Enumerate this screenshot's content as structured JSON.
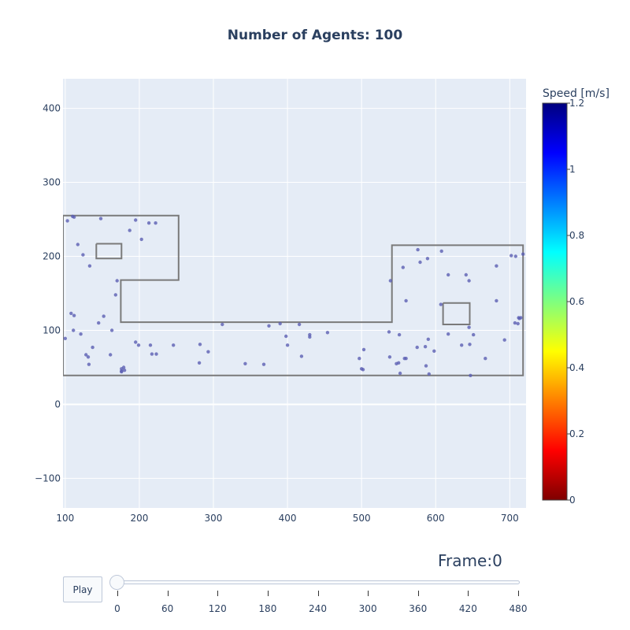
{
  "chart_data": {
    "type": "scatter",
    "title": "Number of Agents: 100",
    "xlabel": "",
    "ylabel": "",
    "xlim": [
      97,
      722
    ],
    "ylim": [
      -140,
      440
    ],
    "xticks": [
      100,
      200,
      300,
      400,
      500,
      600,
      700
    ],
    "yticks": [
      -100,
      0,
      100,
      200,
      300,
      400
    ],
    "xtick_labels": [
      "100",
      "200",
      "300",
      "400",
      "500",
      "600",
      "700"
    ],
    "ytick_labels": [
      "−100",
      "0",
      "100",
      "200",
      "300",
      "400"
    ],
    "grid": true,
    "background": "#e5ecf6",
    "marker_color": "#5b5fb3",
    "wall_color": "#7a7a7a",
    "walls": [
      [
        [
          97,
          255
        ],
        [
          253,
          255
        ],
        [
          253,
          168
        ],
        [
          175,
          168
        ],
        [
          175,
          111
        ],
        [
          541,
          111
        ],
        [
          541,
          215
        ],
        [
          718,
          215
        ],
        [
          718,
          39
        ],
        [
          97,
          39
        ],
        [
          97,
          255
        ]
      ],
      [
        [
          142,
          217
        ],
        [
          176,
          217
        ],
        [
          176,
          197
        ],
        [
          142,
          197
        ],
        [
          142,
          217
        ]
      ],
      [
        [
          610,
          137
        ],
        [
          646,
          137
        ],
        [
          646,
          108
        ],
        [
          610,
          108
        ],
        [
          610,
          137
        ]
      ]
    ],
    "colorbar": {
      "title": "Speed [m/s]",
      "min": 0,
      "max": 1.2,
      "ticks": [
        0,
        0.2,
        0.4,
        0.6,
        0.8,
        1,
        1.2
      ],
      "tick_labels": [
        "0",
        "0.2",
        "0.4",
        "0.6",
        "0.8",
        "1",
        "1.2"
      ],
      "colorscale": [
        "#7f0000",
        "#ff0000",
        "#ff7f00",
        "#ffff00",
        "#7fff7f",
        "#00ffff",
        "#007fff",
        "#0000ff",
        "#00007f"
      ]
    },
    "x": [
      103,
      112,
      110,
      117,
      148,
      187,
      195,
      203,
      213,
      222,
      124,
      133,
      170,
      168,
      145,
      112,
      108,
      121,
      100,
      111,
      132,
      137,
      128,
      131,
      152,
      163,
      161,
      179,
      176,
      195,
      199,
      215,
      217,
      223,
      246,
      282,
      281,
      293,
      312,
      343,
      368,
      375,
      390,
      398,
      400,
      416,
      419,
      430,
      430,
      454,
      497,
      503,
      537,
      551,
      556,
      560,
      576,
      579,
      589,
      608,
      617,
      641,
      645,
      682,
      702,
      708,
      711,
      713,
      715,
      718,
      552,
      560,
      575,
      586,
      590,
      598,
      617,
      635,
      646,
      651,
      667,
      682,
      693,
      707,
      712,
      538,
      547,
      550,
      558,
      587,
      591,
      645,
      647,
      607,
      500,
      502,
      539,
      176,
      176,
      180
    ],
    "y": [
      248,
      253,
      254,
      216,
      251,
      235,
      249,
      223,
      245,
      245,
      202,
      187,
      167,
      148,
      110,
      120,
      123,
      95,
      89,
      100,
      54,
      77,
      67,
      64,
      119,
      100,
      67,
      50,
      45,
      84,
      80,
      80,
      68,
      68,
      80,
      81,
      56,
      71,
      108,
      55,
      54,
      106,
      109,
      92,
      80,
      108,
      65,
      94,
      91,
      97,
      62,
      74,
      98,
      94,
      185,
      140,
      209,
      192,
      197,
      207,
      175,
      175,
      167,
      187,
      201,
      200,
      109,
      116,
      117,
      203,
      42,
      62,
      77,
      78,
      88,
      72,
      95,
      80,
      81,
      94,
      62,
      140,
      87,
      110,
      117,
      64,
      55,
      56,
      62,
      52,
      41,
      104,
      39,
      135,
      48,
      47,
      167,
      48,
      44,
      46
    ]
  },
  "controls": {
    "frame_label": "Frame:",
    "frame_value": "0",
    "play_label": "Play",
    "slider_value": 0,
    "slider_min": 0,
    "slider_max": 480,
    "slider_ticks": [
      "0",
      "60",
      "120",
      "180",
      "240",
      "300",
      "360",
      "420",
      "480"
    ]
  }
}
